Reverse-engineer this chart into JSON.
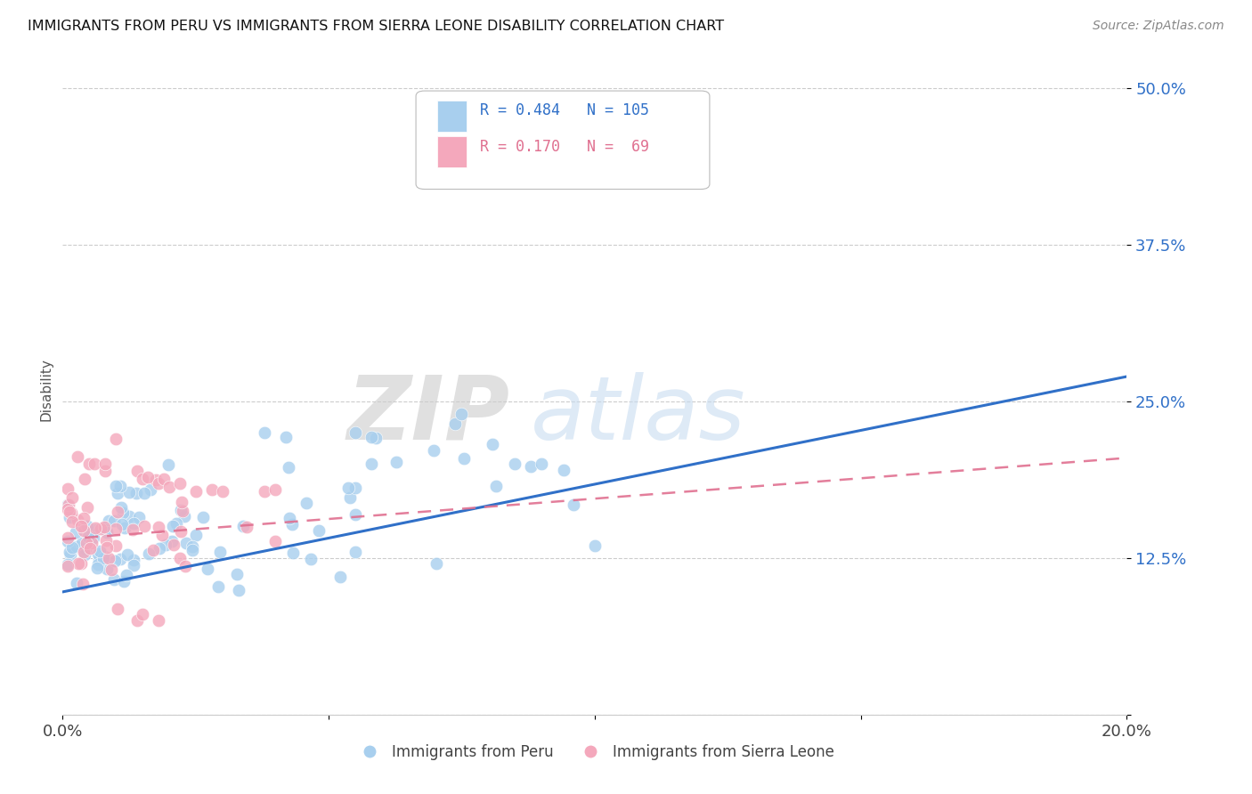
{
  "title": "IMMIGRANTS FROM PERU VS IMMIGRANTS FROM SIERRA LEONE DISABILITY CORRELATION CHART",
  "source": "Source: ZipAtlas.com",
  "ylabel": "Disability",
  "xlim": [
    0.0,
    0.2
  ],
  "ylim": [
    0.0,
    0.52
  ],
  "yticks": [
    0.0,
    0.125,
    0.25,
    0.375,
    0.5
  ],
  "ytick_labels": [
    "",
    "12.5%",
    "25.0%",
    "37.5%",
    "50.0%"
  ],
  "xticks": [
    0.0,
    0.05,
    0.1,
    0.15,
    0.2
  ],
  "xtick_labels": [
    "0.0%",
    "",
    "",
    "",
    "20.0%"
  ],
  "peru_R": 0.484,
  "peru_N": 105,
  "sierra_leone_R": 0.17,
  "sierra_leone_N": 69,
  "peru_color": "#A8CFEE",
  "sierra_leone_color": "#F4A8BC",
  "peru_line_color": "#3070C8",
  "sierra_leone_line_color": "#E07090",
  "background_color": "#FFFFFF",
  "legend_peru_label": "Immigrants from Peru",
  "legend_sierra_leone_label": "Immigrants from Sierra Leone",
  "watermark_zip": "ZIP",
  "watermark_atlas": "atlas",
  "peru_line_x0": 0.0,
  "peru_line_y0": 0.098,
  "peru_line_x1": 0.2,
  "peru_line_y1": 0.27,
  "sierra_line_x0": 0.0,
  "sierra_line_y0": 0.14,
  "sierra_line_x1": 0.2,
  "sierra_line_y1": 0.205
}
